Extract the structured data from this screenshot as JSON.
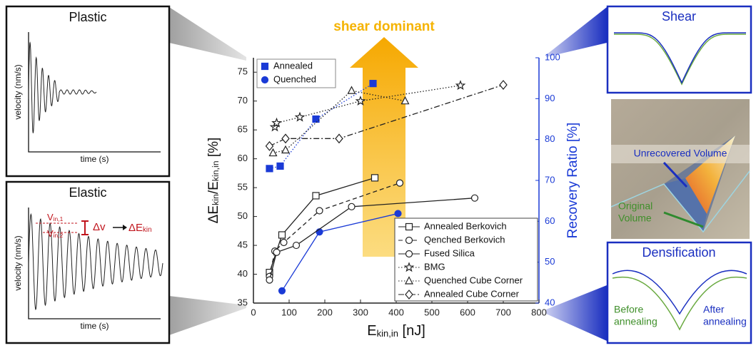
{
  "chart_data": {
    "type": "line",
    "annotation": "shear dominant",
    "x_label": [
      "E",
      "kin,in",
      " [nJ]"
    ],
    "y_label": [
      "ΔE",
      "kin",
      "/E",
      "kin,in",
      " [%]"
    ],
    "y2_label": "Recovery Ratio [%]",
    "xlim": [
      0,
      800
    ],
    "xticks": [
      0,
      100,
      200,
      300,
      400,
      500,
      600,
      700,
      800
    ],
    "ylim": [
      35,
      77.5
    ],
    "yticks": [
      35,
      40,
      45,
      50,
      55,
      60,
      65,
      70,
      75
    ],
    "y2lim": [
      40,
      100
    ],
    "y2ticks": [
      40,
      50,
      60,
      70,
      80,
      90,
      100
    ],
    "series": [
      {
        "name": "Annealed",
        "color": "#1a3ad6",
        "marker": "square",
        "dash": "dotted",
        "filled": true,
        "axis": "y2",
        "x": [
          45,
          75,
          175,
          335
        ],
        "values": [
          72.9,
          73.5,
          85,
          93.7
        ]
      },
      {
        "name": "Quenched",
        "color": "#1a3ad6",
        "marker": "circle",
        "dash": "solid",
        "filled": true,
        "axis": "y2",
        "x": [
          80,
          185,
          405
        ],
        "values": [
          43,
          57.4,
          61.9
        ]
      },
      {
        "name": "Annealed Berkovich",
        "color": "#222222",
        "marker": "square",
        "dash": "solid",
        "filled": false,
        "x": [
          45,
          80,
          175,
          340
        ],
        "values": [
          40.3,
          46.8,
          53.6,
          56.7
        ]
      },
      {
        "name": "Qenched Berkovich",
        "color": "#222222",
        "marker": "circle",
        "dash": "dashed",
        "filled": false,
        "x": [
          45,
          60,
          85,
          185,
          410
        ],
        "values": [
          39.6,
          44,
          45.5,
          51,
          55.8
        ]
      },
      {
        "name": "Fused Silica",
        "color": "#222222",
        "marker": "circle",
        "dash": "solid",
        "filled": false,
        "x": [
          45,
          65,
          120,
          275,
          620
        ],
        "values": [
          39,
          43.8,
          45,
          51.7,
          53.2
        ]
      },
      {
        "name": "BMG",
        "color": "#222222",
        "marker": "star",
        "dash": "dotted",
        "filled": false,
        "x": [
          60,
          65,
          130,
          300,
          580
        ],
        "values": [
          65.5,
          66.2,
          67.2,
          70,
          72.7
        ]
      },
      {
        "name": "Quenched Cube Corner",
        "color": "#222222",
        "marker": "triangle",
        "dash": "dotted",
        "filled": false,
        "x": [
          55,
          90,
          275,
          425
        ],
        "values": [
          61,
          61.5,
          71.8,
          70
        ]
      },
      {
        "name": "Annealed Cube Corner",
        "color": "#222222",
        "marker": "diamond",
        "dash": "dashdot",
        "filled": false,
        "x": [
          45,
          90,
          240,
          700
        ],
        "values": [
          62.2,
          63.5,
          63.5,
          72.8
        ]
      }
    ]
  },
  "plastic_panel": {
    "title": "Plastic",
    "y_label": "velocity (nm/s)",
    "x_label": "time (s)"
  },
  "elastic_panel": {
    "title": "Elastic",
    "y_label": "velocity (nm/s)",
    "x_label": "time (s)",
    "v1": [
      "V",
      "in,1"
    ],
    "v2": [
      "V",
      "in,2"
    ],
    "dv": "Δv",
    "dE": [
      "ΔE",
      "kin"
    ]
  },
  "shear_panel": {
    "title": "Shear"
  },
  "image_panel": {
    "unrecovered": "Unrecovered Volume",
    "original": [
      "Original",
      "Volume"
    ]
  },
  "densification_panel": {
    "title": "Densification",
    "before": [
      "Before",
      "annealing"
    ],
    "after": [
      "After",
      "annealing"
    ]
  }
}
